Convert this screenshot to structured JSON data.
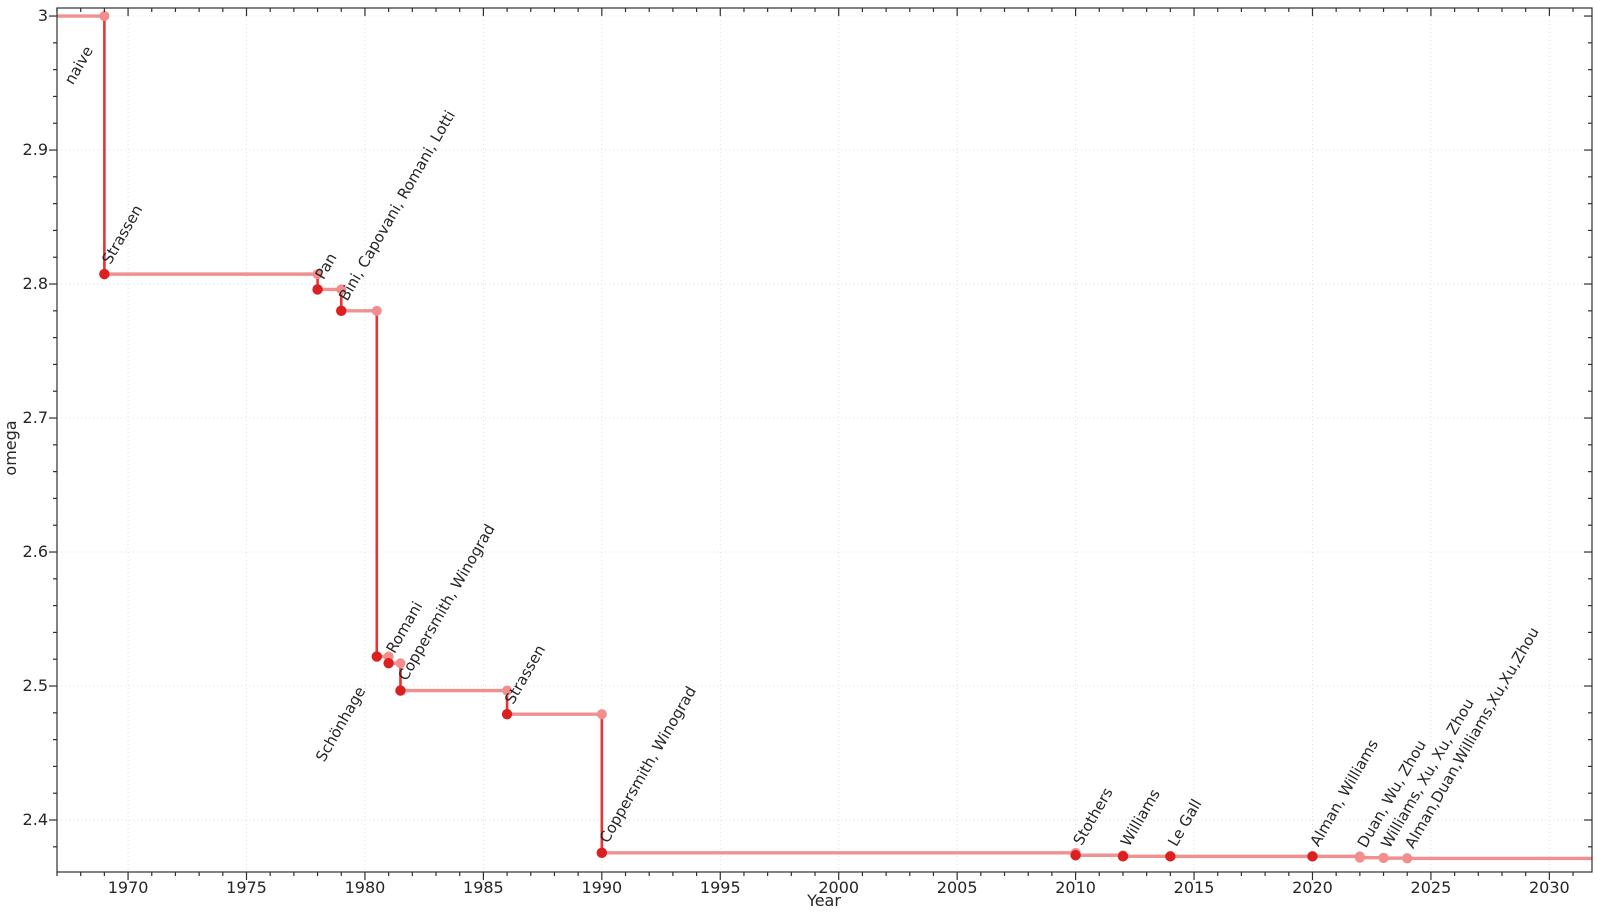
{
  "chart_data": {
    "type": "line",
    "subtype": "step-post",
    "title": "",
    "xlabel": "Year",
    "ylabel": "omega",
    "xlim": [
      1967.0,
      2031.8
    ],
    "ylim": [
      2.3612,
      3.006
    ],
    "x_ticks": [
      1970,
      1975,
      1980,
      1985,
      1990,
      1995,
      2000,
      2005,
      2010,
      2015,
      2020,
      2025,
      2030
    ],
    "y_ticks": [
      2.4,
      2.5,
      2.6,
      2.7,
      2.8,
      2.9,
      3
    ],
    "x_minor_step": 1,
    "y_minor_step": 0.02,
    "grid": {
      "show": true,
      "style": "dotted",
      "at": "major"
    },
    "legend": "none",
    "label_rotation_deg": -60,
    "colors": {
      "step_line": "#f09090",
      "drop_line": "#e43434",
      "marker_result": "#dc1f1f",
      "marker_corner": "#f48d8d",
      "label_default": "#1f1f1f",
      "label_recent": "#a3a3a3",
      "axis": "#2f2f2f",
      "grid": "#dfdfdf"
    },
    "initial": {
      "label": "naive",
      "omega": 3,
      "label_anchor": "end"
    },
    "events": [
      {
        "label": "Strassen",
        "year": 1969,
        "omega": 2.8074,
        "recent": false,
        "label_anchor": "start"
      },
      {
        "label": "Pan",
        "year": 1978,
        "omega": 2.796,
        "recent": false,
        "label_anchor": "start"
      },
      {
        "label": "Bini, Capovani, Romani, Lotti",
        "year": 1979,
        "omega": 2.78,
        "recent": false,
        "label_anchor": "start"
      },
      {
        "label": "Schönhage",
        "year": 1980.5,
        "omega": 2.522,
        "recent": false,
        "label_anchor": "end"
      },
      {
        "label": "Romani",
        "year": 1981,
        "omega": 2.517,
        "recent": false,
        "label_anchor": "start"
      },
      {
        "label": "Coppersmith, Winograd",
        "year": 1981.5,
        "omega": 2.4966,
        "recent": false,
        "label_anchor": "start"
      },
      {
        "label": "Strassen",
        "year": 1986,
        "omega": 2.479,
        "recent": false,
        "label_anchor": "start"
      },
      {
        "label": "Coppersmith, Winograd",
        "year": 1990,
        "omega": 2.3755,
        "recent": false,
        "label_anchor": "start"
      },
      {
        "label": "Stothers",
        "year": 2010,
        "omega": 2.3737,
        "recent": false,
        "label_anchor": "start"
      },
      {
        "label": "Williams",
        "year": 2012,
        "omega": 2.372873,
        "recent": false,
        "label_anchor": "start"
      },
      {
        "label": "Le Gall",
        "year": 2014,
        "omega": 2.3728639,
        "recent": false,
        "label_anchor": "start"
      },
      {
        "label": "Alman, Williams",
        "year": 2020,
        "omega": 2.3728596,
        "recent": false,
        "label_anchor": "start"
      },
      {
        "label": "Duan, Wu, Zhou",
        "year": 2022,
        "omega": 2.371866,
        "recent": true,
        "label_anchor": "start"
      },
      {
        "label": "Williams, Xu, Xu, Zhou",
        "year": 2023,
        "omega": 2.371552,
        "recent": true,
        "label_anchor": "start"
      },
      {
        "label": "Alman,Duan,Williams,Xu,Xu,Zhou",
        "year": 2024,
        "omega": 2.371339,
        "recent": true,
        "label_anchor": "start"
      }
    ]
  }
}
